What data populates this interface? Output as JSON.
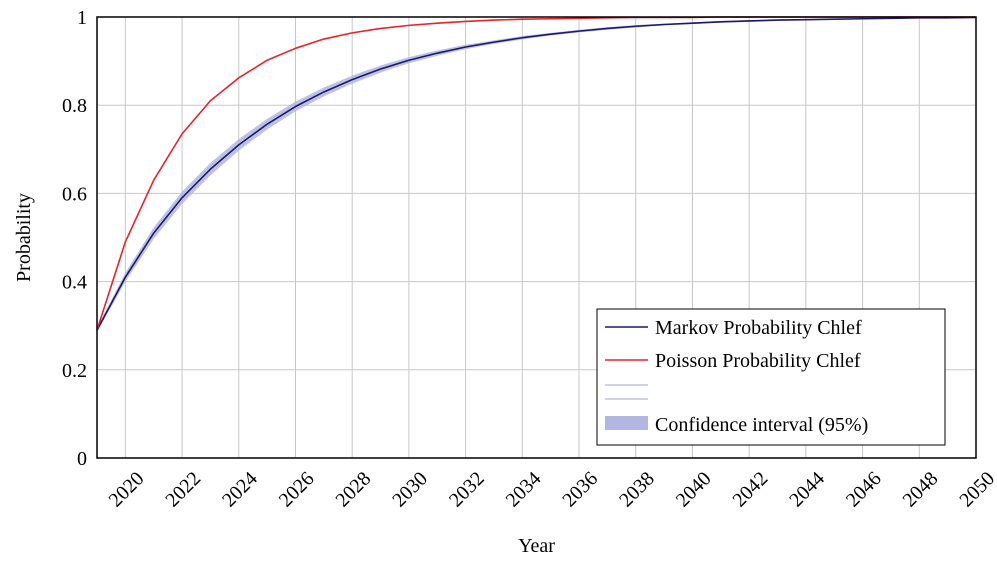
{
  "chart_data": {
    "type": "line",
    "title": "",
    "xlabel": "Year",
    "ylabel": "Probability",
    "xlim": [
      2019,
      2050
    ],
    "ylim": [
      0,
      1
    ],
    "x_ticks": [
      2020,
      2022,
      2024,
      2026,
      2028,
      2030,
      2032,
      2034,
      2036,
      2038,
      2040,
      2042,
      2044,
      2046,
      2048,
      2050
    ],
    "x_tick_labels": [
      "2020",
      "2022",
      "2024",
      "2026",
      "2028",
      "2030",
      "2032",
      "2034",
      "2036",
      "2038",
      "2040",
      "2042",
      "2044",
      "2046",
      "2048",
      "2050"
    ],
    "y_ticks": [
      0,
      0.2,
      0.4,
      0.6,
      0.8,
      1
    ],
    "y_tick_labels": [
      "0",
      "0.2",
      "0.4",
      "0.6",
      "0.8",
      "1"
    ],
    "grid": true,
    "legend_position": "bottom-right",
    "series": [
      {
        "name": "Markov Probability Chlef",
        "color": "#1a1a6e",
        "x": [
          2019,
          2020,
          2021,
          2022,
          2023,
          2024,
          2025,
          2026,
          2027,
          2028,
          2029,
          2030,
          2031,
          2032,
          2033,
          2034,
          2035,
          2036,
          2037,
          2038,
          2039,
          2040,
          2041,
          2042,
          2043,
          2044,
          2045,
          2046,
          2047,
          2048,
          2049,
          2050
        ],
        "y": [
          0.29,
          0.41,
          0.51,
          0.59,
          0.655,
          0.71,
          0.757,
          0.797,
          0.83,
          0.858,
          0.882,
          0.902,
          0.918,
          0.932,
          0.943,
          0.953,
          0.961,
          0.968,
          0.974,
          0.979,
          0.983,
          0.986,
          0.989,
          0.991,
          0.993,
          0.994,
          0.995,
          0.996,
          0.997,
          0.998,
          0.998,
          0.999
        ]
      },
      {
        "name": "Poisson Probability Chlef",
        "color": "#e8232a",
        "x": [
          2019,
          2020,
          2021,
          2022,
          2023,
          2024,
          2025,
          2026,
          2027,
          2028,
          2029,
          2030,
          2031,
          2032,
          2033,
          2034,
          2035,
          2036,
          2037,
          2038,
          2039,
          2040,
          2041,
          2042,
          2043,
          2044,
          2045,
          2046,
          2047,
          2048,
          2049,
          2050
        ],
        "y": [
          0.29,
          0.49,
          0.63,
          0.735,
          0.81,
          0.862,
          0.902,
          0.929,
          0.95,
          0.964,
          0.974,
          0.981,
          0.986,
          0.99,
          0.993,
          0.995,
          0.996,
          0.997,
          0.998,
          0.999,
          0.999,
          0.999,
          1,
          1,
          1,
          1,
          1,
          1,
          1,
          1,
          1,
          1
        ]
      }
    ],
    "confidence_interval": {
      "name": "Confidence interval (95%)",
      "color": "#b3b6e0",
      "x": [
        2019,
        2020,
        2021,
        2022,
        2023,
        2024,
        2025,
        2026,
        2027,
        2028,
        2029,
        2030,
        2031,
        2032,
        2033,
        2034,
        2035,
        2036,
        2037,
        2038,
        2039,
        2040,
        2041,
        2042,
        2043,
        2044,
        2045,
        2046,
        2047,
        2048,
        2049,
        2050
      ],
      "lower": [
        0.285,
        0.4,
        0.497,
        0.576,
        0.641,
        0.697,
        0.745,
        0.786,
        0.82,
        0.849,
        0.874,
        0.895,
        0.912,
        0.927,
        0.939,
        0.949,
        0.958,
        0.965,
        0.971,
        0.976,
        0.981,
        0.984,
        0.987,
        0.989,
        0.991,
        0.993,
        0.994,
        0.995,
        0.996,
        0.997,
        0.997,
        0.998
      ],
      "upper": [
        0.295,
        0.42,
        0.523,
        0.604,
        0.669,
        0.723,
        0.769,
        0.808,
        0.84,
        0.867,
        0.89,
        0.909,
        0.924,
        0.937,
        0.947,
        0.957,
        0.964,
        0.971,
        0.977,
        0.982,
        0.985,
        0.988,
        0.991,
        0.993,
        0.995,
        0.995,
        0.996,
        0.997,
        0.998,
        0.999,
        0.999,
        1
      ]
    },
    "legend_entries": [
      {
        "label": "Markov Probability Chlef",
        "color": "#1a1a6e",
        "kind": "line"
      },
      {
        "label": "Poisson Probability Chlef",
        "color": "#e8232a",
        "kind": "line"
      },
      {
        "label": "",
        "color": "#b3b6e0",
        "kind": "line"
      },
      {
        "label": "",
        "color": "#b3b6e0",
        "kind": "line"
      },
      {
        "label": "Confidence interval (95%)",
        "color": "#b3b6e0",
        "kind": "area"
      }
    ]
  }
}
